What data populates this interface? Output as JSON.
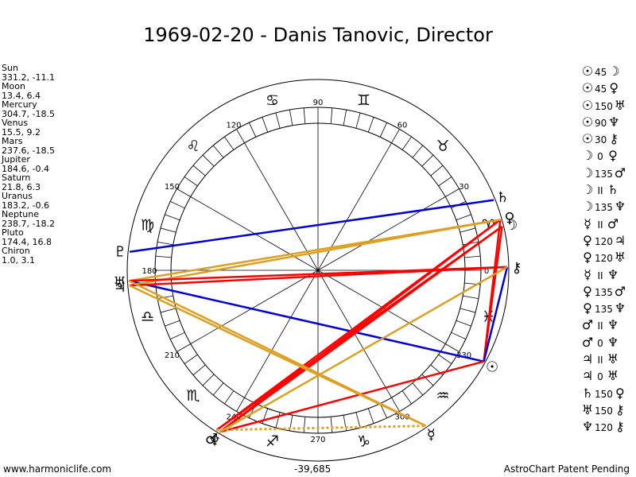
{
  "title": "1969-02-20 - Danis Tanovic, Director",
  "positions": [
    {
      "name": "Sun",
      "coords": "331.2, -11.1"
    },
    {
      "name": "Moon",
      "coords": "13.4, 6.4"
    },
    {
      "name": "Mercury",
      "coords": "304.7, -18.5"
    },
    {
      "name": "Venus",
      "coords": "15.5, 9.2"
    },
    {
      "name": "Mars",
      "coords": "237.6, -18.5"
    },
    {
      "name": "Jupiter",
      "coords": "184.6, -0.4"
    },
    {
      "name": "Saturn",
      "coords": "21.8, 6.3"
    },
    {
      "name": "Uranus",
      "coords": "183.2, -0.6"
    },
    {
      "name": "Neptune",
      "coords": "238.7, -18.2"
    },
    {
      "name": "Pluto",
      "coords": "174.4, 16.8"
    },
    {
      "name": "Chiron",
      "coords": "1.0, 3.1"
    }
  ],
  "aspects": [
    {
      "p1": "☉",
      "angle": "45",
      "p2": "☽"
    },
    {
      "p1": "☉",
      "angle": "45",
      "p2": "♀"
    },
    {
      "p1": "☉",
      "angle": "150",
      "p2": "♅"
    },
    {
      "p1": "☉",
      "angle": "90",
      "p2": "♆"
    },
    {
      "p1": "☉",
      "angle": "30",
      "p2": "⚷"
    },
    {
      "p1": "☽",
      "angle": "0",
      "p2": "♀"
    },
    {
      "p1": "☽",
      "angle": "135",
      "p2": "♂"
    },
    {
      "p1": "☽",
      "angle": "II",
      "p2": "♄"
    },
    {
      "p1": "☽",
      "angle": "135",
      "p2": "♆"
    },
    {
      "p1": "☿",
      "angle": "II",
      "p2": "♂"
    },
    {
      "p1": "♀",
      "angle": "120",
      "p2": "♃"
    },
    {
      "p1": "♀",
      "angle": "120",
      "p2": "♅"
    },
    {
      "p1": "☿",
      "angle": "II",
      "p2": "♆"
    },
    {
      "p1": "♀",
      "angle": "135",
      "p2": "♂"
    },
    {
      "p1": "♀",
      "angle": "135",
      "p2": "♆"
    },
    {
      "p1": "♂",
      "angle": "II",
      "p2": "♆"
    },
    {
      "p1": "♂",
      "angle": "0",
      "p2": "♆"
    },
    {
      "p1": "♃",
      "angle": "II",
      "p2": "♅"
    },
    {
      "p1": "♃",
      "angle": "0",
      "p2": "♅"
    },
    {
      "p1": "♄",
      "angle": "150",
      "p2": "♀"
    },
    {
      "p1": "♅",
      "angle": "150",
      "p2": "⚷"
    },
    {
      "p1": "♆",
      "angle": "120",
      "p2": "⚷"
    }
  ],
  "wheel": {
    "degree_labels": [
      {
        "deg": 0,
        "text": "0"
      },
      {
        "deg": 30,
        "text": "30"
      },
      {
        "deg": 60,
        "text": "60"
      },
      {
        "deg": 90,
        "text": "90"
      },
      {
        "deg": 120,
        "text": "120"
      },
      {
        "deg": 150,
        "text": "150"
      },
      {
        "deg": 180,
        "text": "180"
      },
      {
        "deg": 210,
        "text": "210"
      },
      {
        "deg": 240,
        "text": "240"
      },
      {
        "deg": 270,
        "text": "270"
      },
      {
        "deg": 300,
        "text": "300"
      },
      {
        "deg": 330,
        "text": "330"
      }
    ],
    "signs": [
      {
        "deg": 15,
        "glyph": "♈"
      },
      {
        "deg": 45,
        "glyph": "♉"
      },
      {
        "deg": 75,
        "glyph": "♊"
      },
      {
        "deg": 105,
        "glyph": "♋"
      },
      {
        "deg": 135,
        "glyph": "♌"
      },
      {
        "deg": 165,
        "glyph": "♍"
      },
      {
        "deg": 195,
        "glyph": "♎"
      },
      {
        "deg": 225,
        "glyph": "♏"
      },
      {
        "deg": 255,
        "glyph": "♐"
      },
      {
        "deg": 285,
        "glyph": "♑"
      },
      {
        "deg": 315,
        "glyph": "♒"
      },
      {
        "deg": 345,
        "glyph": "♓"
      }
    ],
    "planets": [
      {
        "name": "sun",
        "glyph": "☉",
        "deg": 331.2
      },
      {
        "name": "moon",
        "glyph": "☽",
        "deg": 13.4
      },
      {
        "name": "mercury",
        "glyph": "☿",
        "deg": 304.7
      },
      {
        "name": "venus",
        "glyph": "♀",
        "deg": 15.5
      },
      {
        "name": "mars",
        "glyph": "♂",
        "deg": 237.6
      },
      {
        "name": "jupiter",
        "glyph": "♃",
        "deg": 184.6
      },
      {
        "name": "saturn",
        "glyph": "♄",
        "deg": 21.8
      },
      {
        "name": "uranus",
        "glyph": "♅",
        "deg": 183.2
      },
      {
        "name": "neptune",
        "glyph": "♆",
        "deg": 238.7
      },
      {
        "name": "pluto",
        "glyph": "♇",
        "deg": 174.4
      },
      {
        "name": "chiron",
        "glyph": "⚷",
        "deg": 1.0
      }
    ],
    "aspect_lines": [
      {
        "a": "sun",
        "b": "moon",
        "color": "#ff0000"
      },
      {
        "a": "sun",
        "b": "venus",
        "color": "#ff0000"
      },
      {
        "a": "sun",
        "b": "uranus",
        "color": "#0000dd"
      },
      {
        "a": "sun",
        "b": "chiron",
        "color": "#0000dd"
      },
      {
        "a": "sun",
        "b": "neptune",
        "color": "#ff0000"
      },
      {
        "a": "moon",
        "b": "mars",
        "color": "#ff0000"
      },
      {
        "a": "moon",
        "b": "neptune",
        "color": "#ff0000"
      },
      {
        "a": "venus",
        "b": "mars",
        "color": "#ff0000"
      },
      {
        "a": "venus",
        "b": "neptune",
        "color": "#ff0000"
      },
      {
        "a": "venus",
        "b": "uranus",
        "color": "#dda020"
      },
      {
        "a": "venus",
        "b": "jupiter",
        "color": "#dda020"
      },
      {
        "a": "saturn",
        "b": "pluto",
        "color": "#0000dd"
      },
      {
        "a": "uranus",
        "b": "chiron",
        "color": "#ff0000"
      },
      {
        "a": "jupiter",
        "b": "chiron",
        "color": "#ff0000"
      },
      {
        "a": "neptune",
        "b": "chiron",
        "color": "#dda020"
      },
      {
        "a": "uranus",
        "b": "mercury",
        "color": "#dda020"
      },
      {
        "a": "jupiter",
        "b": "mercury",
        "color": "#dda020"
      },
      {
        "a": "mars",
        "b": "mercury",
        "color": "#dda020",
        "dotted": true
      }
    ]
  },
  "footer": {
    "left": "www.harmoniclife.com",
    "center": "-39,685",
    "right": "AstroChart Patent Pending"
  }
}
